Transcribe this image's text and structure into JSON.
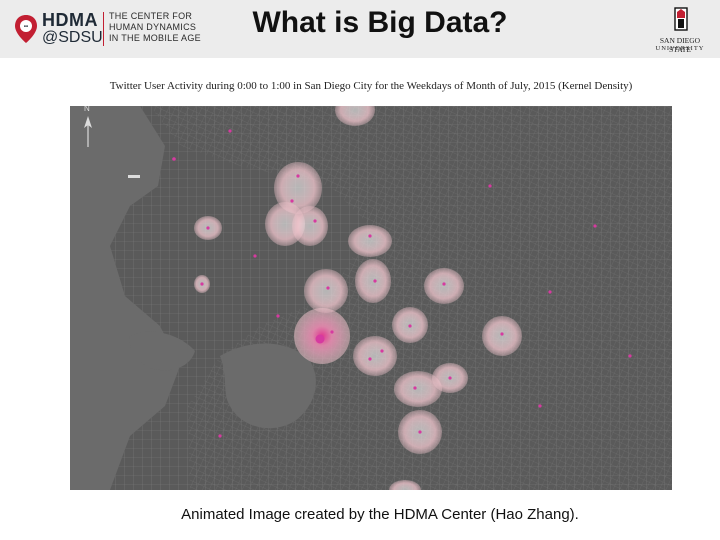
{
  "header": {
    "logo": {
      "hdma": "HDMA",
      "sdsu": "@SDSU",
      "center_lines": [
        "THE CENTER FOR",
        "HUMAN DYNAMICS",
        "IN THE MOBILE AGE"
      ]
    },
    "title": "What is Big Data?",
    "university_lines": [
      "SAN DIEGO STATE",
      "UNIVERSITY"
    ]
  },
  "map": {
    "title": "Twitter User Activity during 0:00 to 1:00 in San Diego City for the Weekdays of Month of July, 2015 (Kernel Density)",
    "north_label": "N",
    "hotspots": [
      {
        "value": 0.45
      },
      {
        "value": 0.55
      },
      {
        "value": 0.5
      },
      {
        "value": 0.6
      },
      {
        "value": 0.5
      },
      {
        "value": 0.45
      },
      {
        "value": 0.5
      },
      {
        "value": 0.45
      },
      {
        "value": 0.9
      },
      {
        "value": 0.5
      },
      {
        "value": 0.45
      },
      {
        "value": 0.5
      },
      {
        "value": 0.5
      },
      {
        "value": 0.45
      },
      {
        "value": 0.45
      },
      {
        "value": 0.4
      },
      {
        "value": 0.4
      },
      {
        "value": 0.35
      }
    ]
  },
  "caption": "Animated Image created by the HDMA Center (Hao Zhang).",
  "colors": {
    "accent": "#c21f32",
    "map_background": "#5a5a5a",
    "ocean": "#6b6b6b",
    "hotspot": "#f3c7cf",
    "hotspot_core": "#e0368f"
  }
}
